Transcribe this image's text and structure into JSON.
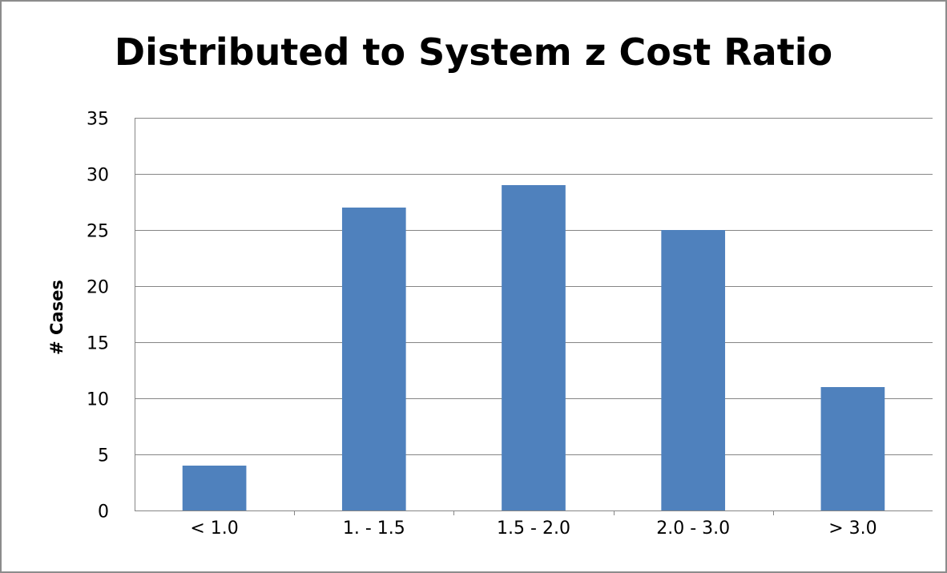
{
  "chart_data": {
    "type": "bar",
    "title": "Distributed to System z Cost Ratio",
    "xlabel": "",
    "ylabel": "# Cases",
    "categories": [
      "< 1.0",
      "1. - 1.5",
      "1.5 - 2.0",
      "2.0 - 3.0",
      "> 3.0"
    ],
    "values": [
      4,
      27,
      29,
      25,
      11
    ],
    "ylim": [
      0,
      35
    ],
    "yticks": [
      0,
      5,
      10,
      15,
      20,
      25,
      30,
      35
    ],
    "grid": true,
    "legend": "none",
    "bar_color": "#4f81bd",
    "grid_color": "#868686"
  }
}
